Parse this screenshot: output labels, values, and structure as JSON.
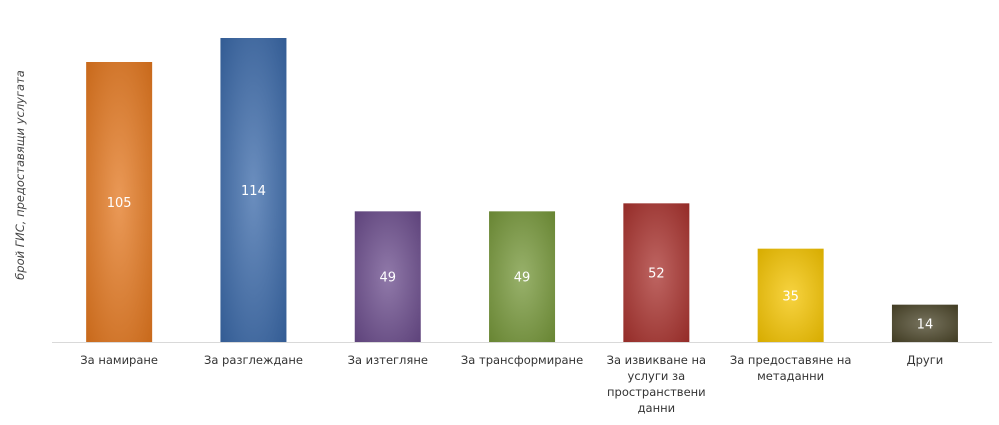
{
  "chart_data": {
    "type": "bar",
    "title": "",
    "xlabel": "",
    "ylabel": "брой ГИС, предоставящи услугата",
    "categories": [
      "За намиране",
      "За разглеждане",
      "За изтегляне",
      "За трансформиране",
      "За извикване на услуги за пространствени данни",
      "За предоставяне на метаданни",
      "Други"
    ],
    "values": [
      105,
      114,
      49,
      49,
      52,
      35,
      14
    ],
    "colors": [
      "#e3771f",
      "#3a68a8",
      "#6b4c8c",
      "#76973a",
      "#a8322e",
      "#f4c400",
      "#4a4428"
    ],
    "ylim": [
      0,
      120
    ],
    "grid": false,
    "legend": "none"
  }
}
